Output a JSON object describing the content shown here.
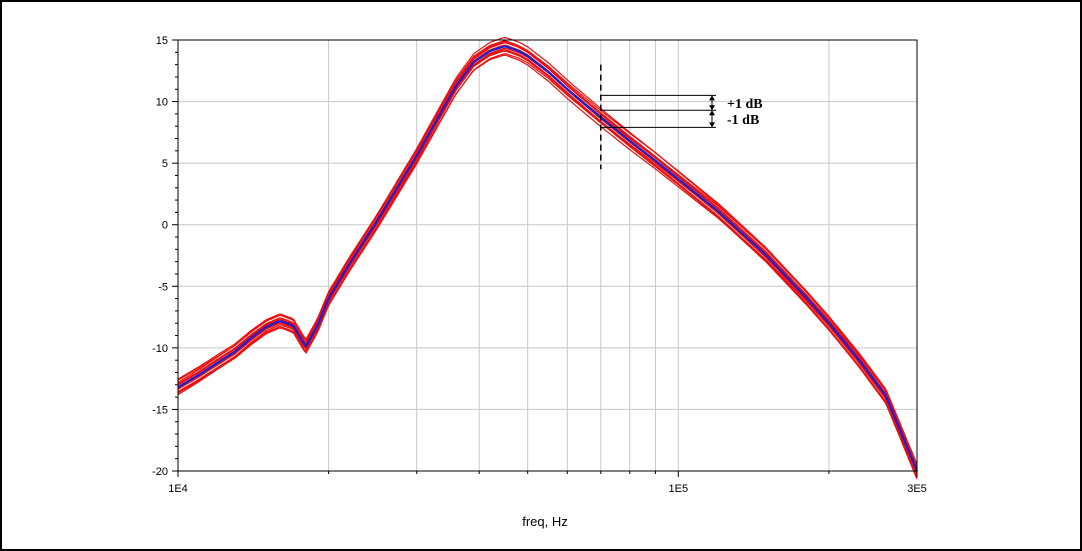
{
  "chart_data": {
    "type": "line",
    "title": "",
    "xlabel": "freq, Hz",
    "ylabel": "",
    "x_scale": "log",
    "xlim": [
      10000,
      300000
    ],
    "ylim": [
      -20,
      15
    ],
    "grid": true,
    "x_ticks": [
      {
        "value": 10000,
        "label": "1E4"
      },
      {
        "value": 100000,
        "label": "1E5"
      },
      {
        "value": 300000,
        "label": "3E5"
      }
    ],
    "y_ticks": [
      15,
      10,
      5,
      0,
      -5,
      -10,
      -15,
      -20
    ],
    "x_minor_grid": [
      20000,
      30000,
      40000,
      50000,
      60000,
      70000,
      80000,
      90000,
      200000
    ],
    "series": [
      {
        "role": "nominal",
        "color": "#1f1fd0",
        "x": [
          10000,
          11000,
          12000,
          13000,
          14000,
          15000,
          16000,
          17000,
          18000,
          19000,
          20000,
          22000,
          25000,
          28000,
          30000,
          33000,
          36000,
          39000,
          42000,
          45000,
          48000,
          50000,
          55000,
          60000,
          65000,
          70000,
          80000,
          90000,
          100000,
          120000,
          150000,
          180000,
          200000,
          230000,
          260000,
          300000
        ],
        "y": [
          -13.2,
          -12.2,
          -11.2,
          -10.3,
          -9.2,
          -8.3,
          -7.8,
          -8.2,
          -9.9,
          -8.2,
          -6.0,
          -3.2,
          0.3,
          3.6,
          5.6,
          8.6,
          11.3,
          13.2,
          14.1,
          14.5,
          14.1,
          13.7,
          12.4,
          11.0,
          9.8,
          8.7,
          6.8,
          5.2,
          3.7,
          1.1,
          -2.5,
          -5.9,
          -8.0,
          -11.0,
          -13.9,
          -20.0
        ]
      }
    ],
    "monte_carlo": {
      "color": "#e81010",
      "count": 14,
      "spread_db": 0.6
    },
    "annotations": {
      "marker_freq": 70000,
      "marker_range": [
        4.5,
        13
      ],
      "plus_label": "+1 dB",
      "minus_label": "-1 dB",
      "level_upper": 10.5,
      "level_center": 9.3,
      "level_lower": 7.9
    }
  }
}
